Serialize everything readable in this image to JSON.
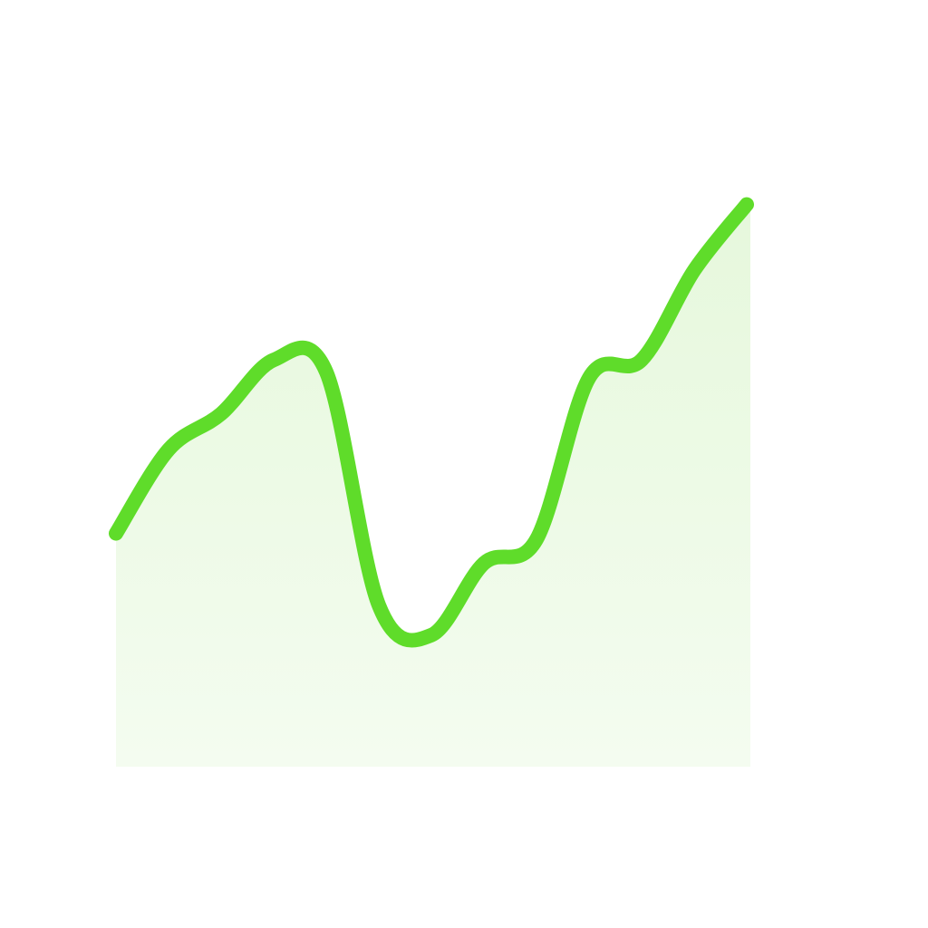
{
  "chart_data": {
    "type": "area",
    "title": "",
    "xlabel": "",
    "ylabel": "",
    "axes_visible": false,
    "grid": false,
    "legend": "none",
    "x": [
      0,
      1,
      2,
      3,
      4,
      5,
      6,
      7,
      8,
      9,
      10,
      11,
      12
    ],
    "ylim": [
      0,
      100
    ],
    "series": [
      {
        "values": [
          39,
          53,
          59,
          68,
          66,
          27,
          22,
          34,
          38,
          65,
          68,
          83,
          94
        ],
        "line_color": "#5fdc2a",
        "fill_color": "#e8f8df"
      }
    ]
  }
}
